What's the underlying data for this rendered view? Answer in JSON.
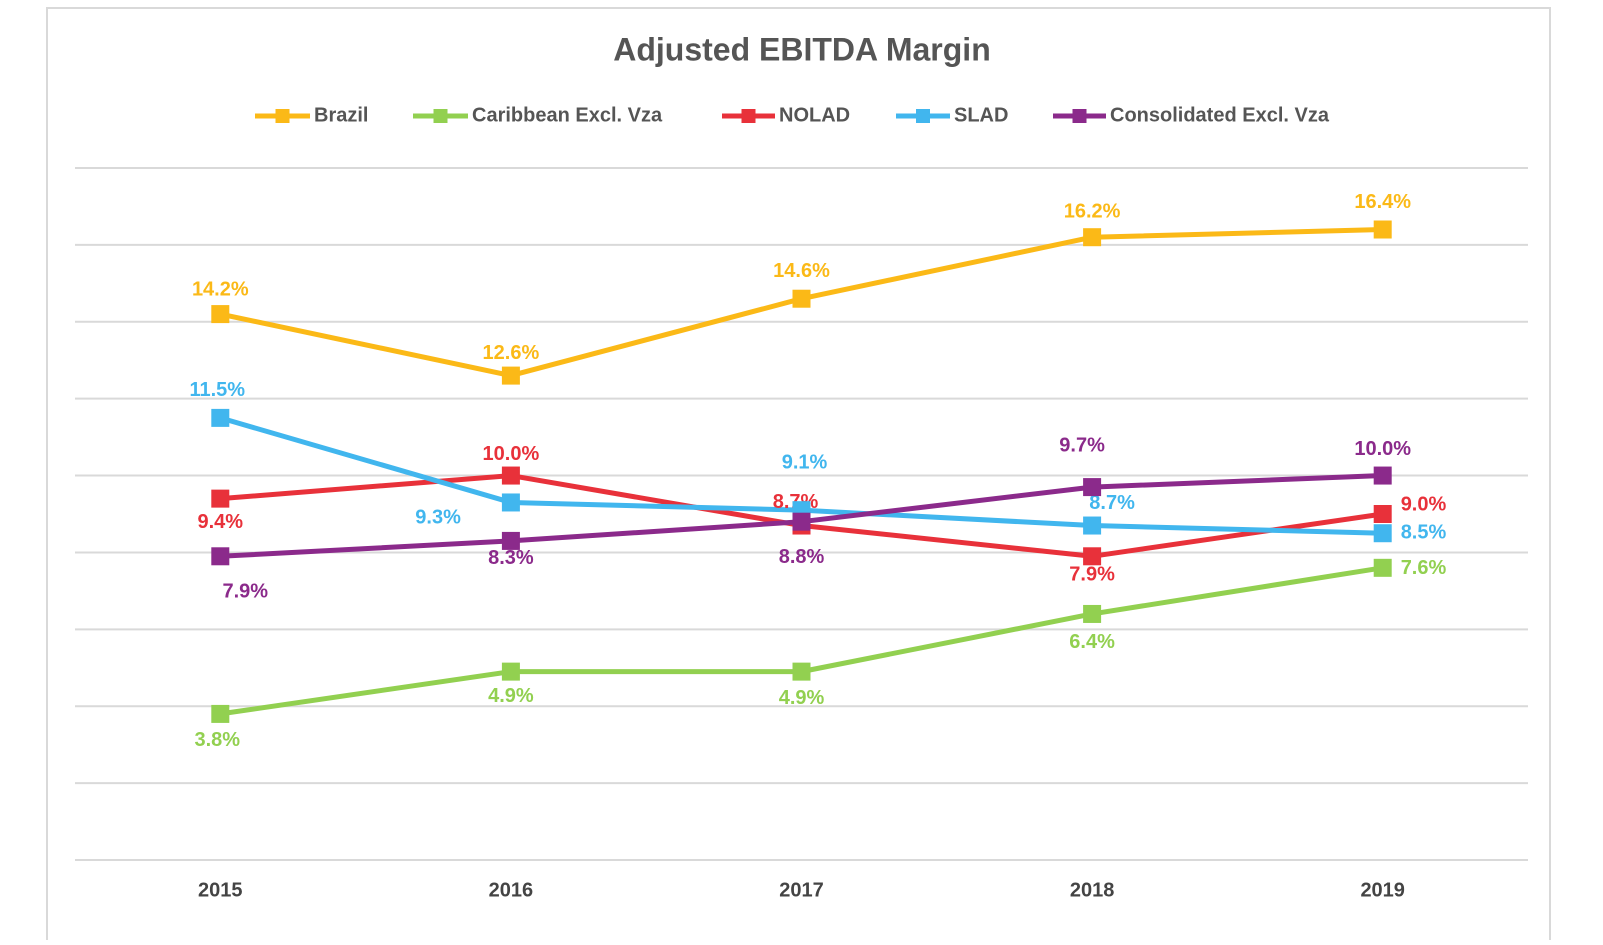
{
  "chart_data": {
    "type": "line",
    "title": "Adjusted EBITDA Margin",
    "categories": [
      "2015",
      "2016",
      "2017",
      "2018",
      "2019"
    ],
    "series": [
      {
        "name": "Brazil",
        "color": "#fbb917",
        "values": [
          14.2,
          12.6,
          14.6,
          16.2,
          16.4
        ],
        "value_labels": [
          "14.2%",
          "12.6%",
          "14.6%",
          "16.2%",
          "16.4%"
        ]
      },
      {
        "name": "Caribbean Excl. Vza",
        "color": "#92d050",
        "values": [
          3.8,
          4.9,
          4.9,
          6.4,
          7.6
        ],
        "value_labels": [
          "3.8%",
          "4.9%",
          "4.9%",
          "6.4%",
          "7.6%"
        ]
      },
      {
        "name": "NOLAD",
        "color": "#e8313a",
        "values": [
          9.4,
          10.0,
          8.7,
          7.9,
          9.0
        ],
        "value_labels": [
          "9.4%",
          "10.0%",
          "8.7%",
          "7.9%",
          "9.0%"
        ]
      },
      {
        "name": "SLAD",
        "color": "#41b6ee",
        "values": [
          11.5,
          9.3,
          9.1,
          8.7,
          8.5
        ],
        "value_labels": [
          "11.5%",
          "9.3%",
          "9.1%",
          "8.7%",
          "8.5%"
        ]
      },
      {
        "name": "Consolidated Excl. Vza",
        "color": "#8b2a8b",
        "values": [
          7.9,
          8.3,
          8.8,
          9.7,
          10.0
        ],
        "value_labels": [
          "7.9%",
          "8.3%",
          "8.8%",
          "9.7%",
          "10.0%"
        ]
      }
    ],
    "ylim": [
      0,
      18
    ],
    "yticks": [
      0,
      2,
      4,
      6,
      8,
      10,
      12,
      14,
      16,
      18
    ],
    "grid": true,
    "legend": "top"
  }
}
